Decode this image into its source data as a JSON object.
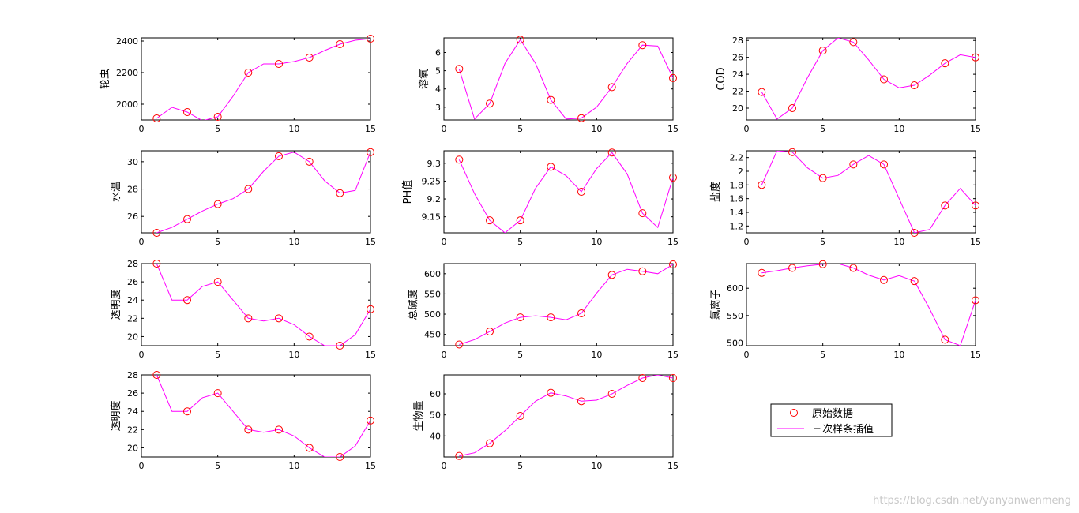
{
  "colors": {
    "marker": "#ff0000",
    "line": "#ff00ff",
    "axis": "#000000",
    "background": "#ffffff"
  },
  "legend": {
    "placement": "bottom-right",
    "items": [
      "原始数据",
      "三次样条插值"
    ]
  },
  "watermark": "https://blog.csdn.net/yanyanwenmeng",
  "chart_data": [
    {
      "type": "line",
      "ylabel": "轮虫",
      "xlim": [
        0,
        15
      ],
      "ylim": [
        1900,
        2420
      ],
      "xticks": [
        0,
        5,
        10,
        15
      ],
      "yticks": [
        2000,
        2200,
        2400
      ],
      "original": {
        "x": [
          1,
          3,
          5,
          7,
          9,
          11,
          13,
          15
        ],
        "y": [
          1910,
          1950,
          1920,
          2200,
          2255,
          2295,
          2380,
          2415
        ]
      },
      "spline": {
        "x": [
          1,
          2,
          3,
          4,
          5,
          6,
          7,
          8,
          9,
          10,
          11,
          12,
          13,
          14,
          15
        ],
        "y": [
          1910,
          1980,
          1950,
          1895,
          1920,
          2050,
          2200,
          2255,
          2255,
          2270,
          2295,
          2340,
          2380,
          2405,
          2415
        ]
      }
    },
    {
      "type": "line",
      "ylabel": "溶氧",
      "xlim": [
        0,
        15
      ],
      "ylim": [
        2.3,
        6.8
      ],
      "xticks": [
        0,
        5,
        10,
        15
      ],
      "yticks": [
        3,
        4,
        5,
        6
      ],
      "original": {
        "x": [
          1,
          3,
          5,
          7,
          9,
          11,
          13,
          15
        ],
        "y": [
          5.1,
          3.2,
          6.7,
          3.4,
          2.4,
          4.1,
          6.4,
          4.6
        ]
      },
      "spline": {
        "x": [
          1,
          2,
          3,
          4,
          5,
          6,
          7,
          8,
          9,
          10,
          11,
          12,
          13,
          14,
          15
        ],
        "y": [
          5.1,
          2.35,
          3.2,
          5.4,
          6.7,
          5.4,
          3.4,
          2.35,
          2.4,
          3.0,
          4.1,
          5.4,
          6.4,
          6.35,
          4.6
        ]
      }
    },
    {
      "type": "line",
      "ylabel": "COD",
      "xlim": [
        0,
        15
      ],
      "ylim": [
        18.6,
        28.3
      ],
      "xticks": [
        0,
        5,
        10,
        15
      ],
      "yticks": [
        20,
        22,
        24,
        26,
        28
      ],
      "original": {
        "x": [
          1,
          3,
          5,
          7,
          9,
          11,
          13,
          15
        ],
        "y": [
          21.9,
          20.0,
          26.8,
          27.8,
          23.4,
          22.7,
          25.3,
          26.0
        ]
      },
      "spline": {
        "x": [
          1,
          2,
          3,
          4,
          5,
          6,
          7,
          8,
          9,
          10,
          11,
          12,
          13,
          14,
          15
        ],
        "y": [
          21.9,
          18.7,
          20.0,
          23.6,
          26.8,
          28.3,
          27.8,
          25.7,
          23.4,
          22.4,
          22.7,
          23.9,
          25.3,
          26.3,
          26.0
        ]
      }
    },
    {
      "type": "line",
      "ylabel": "水温",
      "xlim": [
        0,
        15
      ],
      "ylim": [
        24.8,
        30.8
      ],
      "xticks": [
        0,
        5,
        10,
        15
      ],
      "yticks": [
        26,
        28,
        30
      ],
      "original": {
        "x": [
          1,
          3,
          5,
          7,
          9,
          11,
          13,
          15
        ],
        "y": [
          24.8,
          25.8,
          26.9,
          28.0,
          30.4,
          30.0,
          27.7,
          30.7
        ]
      },
      "spline": {
        "x": [
          1,
          2,
          3,
          4,
          5,
          6,
          7,
          8,
          9,
          10,
          11,
          12,
          13,
          14,
          15
        ],
        "y": [
          24.8,
          25.2,
          25.8,
          26.4,
          26.9,
          27.3,
          28.0,
          29.3,
          30.4,
          30.7,
          30.0,
          28.6,
          27.7,
          27.9,
          30.7
        ]
      }
    },
    {
      "type": "line",
      "ylabel": "PH值",
      "xlim": [
        0,
        15
      ],
      "ylim": [
        9.105,
        9.335
      ],
      "xticks": [
        0,
        5,
        10,
        15
      ],
      "yticks": [
        9.15,
        9.2,
        9.25,
        9.3
      ],
      "original": {
        "x": [
          1,
          3,
          5,
          7,
          9,
          11,
          13,
          15
        ],
        "y": [
          9.31,
          9.14,
          9.14,
          9.29,
          9.22,
          9.33,
          9.16,
          9.26
        ]
      },
      "spline": {
        "x": [
          1,
          2,
          3,
          4,
          5,
          6,
          7,
          8,
          9,
          10,
          11,
          12,
          13,
          14,
          15
        ],
        "y": [
          9.31,
          9.215,
          9.14,
          9.105,
          9.14,
          9.23,
          9.29,
          9.265,
          9.22,
          9.285,
          9.33,
          9.27,
          9.16,
          9.12,
          9.26
        ]
      }
    },
    {
      "type": "line",
      "ylabel": "盐度",
      "xlim": [
        0,
        15
      ],
      "ylim": [
        1.1,
        2.3
      ],
      "xticks": [
        0,
        5,
        10,
        15
      ],
      "yticks": [
        1.2,
        1.4,
        1.6,
        1.8,
        2,
        2.2
      ],
      "original": {
        "x": [
          1,
          3,
          5,
          7,
          9,
          11,
          13,
          15
        ],
        "y": [
          1.8,
          2.28,
          1.9,
          2.1,
          2.1,
          1.1,
          1.5,
          1.5
        ]
      },
      "spline": {
        "x": [
          1,
          2,
          3,
          4,
          5,
          6,
          7,
          8,
          9,
          10,
          11,
          12,
          13,
          14,
          15
        ],
        "y": [
          1.8,
          2.3,
          2.28,
          2.05,
          1.9,
          1.94,
          2.1,
          2.23,
          2.1,
          1.6,
          1.1,
          1.15,
          1.5,
          1.75,
          1.5
        ]
      }
    },
    {
      "type": "line",
      "ylabel": "透明度",
      "xlim": [
        0,
        15
      ],
      "ylim": [
        19,
        28
      ],
      "xticks": [
        0,
        5,
        10,
        15
      ],
      "yticks": [
        20,
        22,
        24,
        26,
        28
      ],
      "original": {
        "x": [
          1,
          3,
          5,
          7,
          9,
          11,
          13,
          15
        ],
        "y": [
          28,
          24,
          26,
          22,
          22,
          20,
          19,
          23
        ]
      },
      "spline": {
        "x": [
          1,
          2,
          3,
          4,
          5,
          6,
          7,
          8,
          9,
          10,
          11,
          12,
          13,
          14,
          15
        ],
        "y": [
          28,
          24,
          24,
          25.5,
          26,
          24,
          22,
          21.7,
          22,
          21.3,
          20,
          19,
          19,
          20.2,
          23
        ]
      }
    },
    {
      "type": "line",
      "ylabel": "总碱度",
      "xlim": [
        0,
        15
      ],
      "ylim": [
        422,
        625
      ],
      "xticks": [
        0,
        5,
        10,
        15
      ],
      "yticks": [
        450,
        500,
        550,
        600
      ],
      "original": {
        "x": [
          1,
          3,
          5,
          7,
          9,
          11,
          13,
          15
        ],
        "y": [
          425,
          457,
          492,
          492,
          502,
          597,
          606,
          623
        ]
      },
      "spline": {
        "x": [
          1,
          2,
          3,
          4,
          5,
          6,
          7,
          8,
          9,
          10,
          11,
          12,
          13,
          14,
          15
        ],
        "y": [
          425,
          437,
          457,
          478,
          492,
          496,
          492,
          486,
          502,
          552,
          597,
          611,
          606,
          600,
          623
        ]
      }
    },
    {
      "type": "line",
      "ylabel": "氯离子",
      "xlim": [
        0,
        15
      ],
      "ylim": [
        495,
        645
      ],
      "xticks": [
        0,
        5,
        10,
        15
      ],
      "yticks": [
        500,
        550,
        600
      ],
      "original": {
        "x": [
          1,
          3,
          5,
          7,
          9,
          11,
          13,
          15
        ],
        "y": [
          628,
          637,
          644,
          637,
          615,
          613,
          506,
          578
        ]
      },
      "spline": {
        "x": [
          1,
          2,
          3,
          4,
          5,
          6,
          7,
          8,
          9,
          10,
          11,
          12,
          13,
          14,
          15
        ],
        "y": [
          628,
          632,
          637,
          641,
          644,
          645,
          637,
          624,
          615,
          623,
          613,
          562,
          506,
          495,
          578
        ]
      }
    },
    {
      "type": "line",
      "ylabel": "透明度",
      "xlim": [
        0,
        15
      ],
      "ylim": [
        19,
        28
      ],
      "xticks": [
        0,
        5,
        10,
        15
      ],
      "yticks": [
        20,
        22,
        24,
        26,
        28
      ],
      "original": {
        "x": [
          1,
          3,
          5,
          7,
          9,
          11,
          13,
          15
        ],
        "y": [
          28,
          24,
          26,
          22,
          22,
          20,
          19,
          23
        ]
      },
      "spline": {
        "x": [
          1,
          2,
          3,
          4,
          5,
          6,
          7,
          8,
          9,
          10,
          11,
          12,
          13,
          14,
          15
        ],
        "y": [
          28,
          24,
          24,
          25.5,
          26,
          24,
          22,
          21.7,
          22,
          21.3,
          20,
          19,
          19,
          20.2,
          23
        ]
      }
    },
    {
      "type": "line",
      "ylabel": "生物量",
      "xlim": [
        0,
        15
      ],
      "ylim": [
        30,
        69
      ],
      "xticks": [
        0,
        5,
        10,
        15
      ],
      "yticks": [
        40,
        50,
        60
      ],
      "original": {
        "x": [
          1,
          3,
          5,
          7,
          9,
          11,
          13,
          15
        ],
        "y": [
          30.5,
          36.5,
          49.5,
          60.5,
          56.5,
          60,
          67.5,
          67.5
        ]
      },
      "spline": {
        "x": [
          1,
          2,
          3,
          4,
          5,
          6,
          7,
          8,
          9,
          10,
          11,
          12,
          13,
          14,
          15
        ],
        "y": [
          30.5,
          32,
          36.5,
          42.5,
          49.5,
          56.5,
          60.5,
          59,
          56.5,
          57,
          60,
          64,
          67.5,
          69,
          67.5
        ]
      }
    }
  ]
}
